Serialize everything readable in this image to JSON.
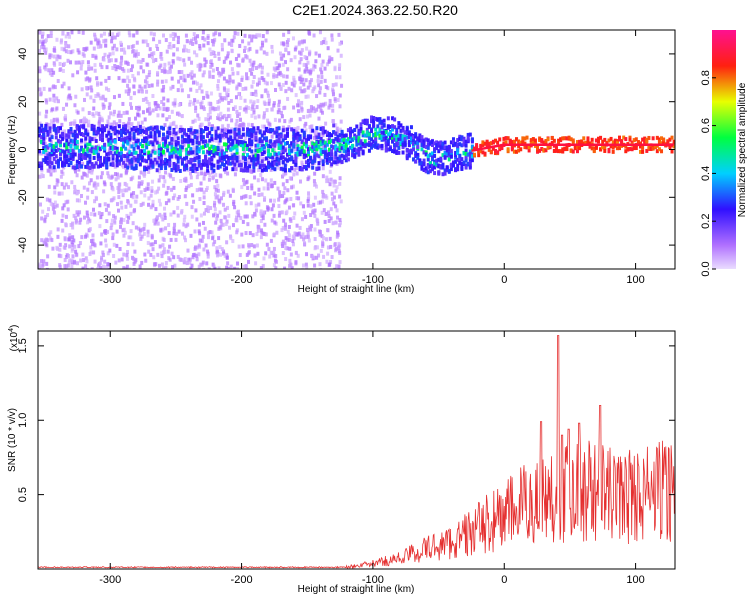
{
  "figure": {
    "title": "C2E1.2024.363.22.50.R20"
  },
  "chart_data": [
    {
      "type": "heatmap",
      "title": "C2E1.2024.363.22.50.R20",
      "xlabel": "Height of straight line (km)",
      "ylabel": "Frequency (Hz)",
      "xlim": [
        -355,
        130
      ],
      "ylim": [
        -50,
        50
      ],
      "x_ticks": [
        -300,
        -200,
        -100,
        0,
        100
      ],
      "y_ticks": [
        -40,
        -20,
        0,
        20,
        40
      ],
      "colorbar": {
        "label": "Normalized spectral amplitude",
        "range": [
          0.0,
          1.0
        ],
        "ticks": [
          "0.0",
          "0.2",
          "0.4",
          "0.6",
          "0.8"
        ],
        "colors": [
          "#e8d8ff",
          "#9a40ff",
          "#3020ff",
          "#00d8ff",
          "#00ff40",
          "#ffe000",
          "#ff2020",
          "#ff1080"
        ]
      },
      "ridge": {
        "x": [
          -355,
          -300,
          -250,
          -200,
          -150,
          -120,
          -100,
          -85,
          -70,
          -60,
          -50,
          -40,
          -30,
          -20,
          -10,
          0,
          20,
          40,
          60,
          80,
          100,
          130
        ],
        "y": [
          1,
          1,
          0,
          0,
          0,
          2,
          7,
          6,
          2,
          -3,
          -4,
          -2,
          -1,
          0,
          1,
          2,
          2,
          2,
          2,
          2,
          2,
          2
        ]
      }
    },
    {
      "type": "line",
      "xlabel": "Height of straight line (km)",
      "ylabel": "SNR (10 * v/v)",
      "y_scale_label": "(x10",
      "y_scale_exponent": "4",
      "y_scale_suffix": ")",
      "xlim": [
        -355,
        130
      ],
      "ylim": [
        0,
        1.6
      ],
      "x_ticks": [
        -300,
        -200,
        -100,
        0,
        100
      ],
      "y_ticks": [
        0.5,
        1.0,
        1.5
      ],
      "y_tick_labels": [
        "0.5",
        "1.0",
        "1.5"
      ],
      "color": "#e53030",
      "envelope_x": [
        -355,
        -120,
        -100,
        -80,
        -60,
        -40,
        -20,
        0,
        20,
        40,
        60,
        80,
        100,
        130
      ],
      "envelope_y": [
        0.01,
        0.015,
        0.04,
        0.08,
        0.15,
        0.2,
        0.3,
        0.4,
        0.5,
        0.55,
        0.6,
        0.55,
        0.55,
        0.6
      ],
      "peaks": [
        {
          "x": 41,
          "y": 1.57
        },
        {
          "x": 73,
          "y": 1.1
        },
        {
          "x": 28,
          "y": 0.99
        },
        {
          "x": 57,
          "y": 0.98
        },
        {
          "x": 49,
          "y": 0.94
        },
        {
          "x": 44,
          "y": 0.9
        }
      ]
    }
  ]
}
